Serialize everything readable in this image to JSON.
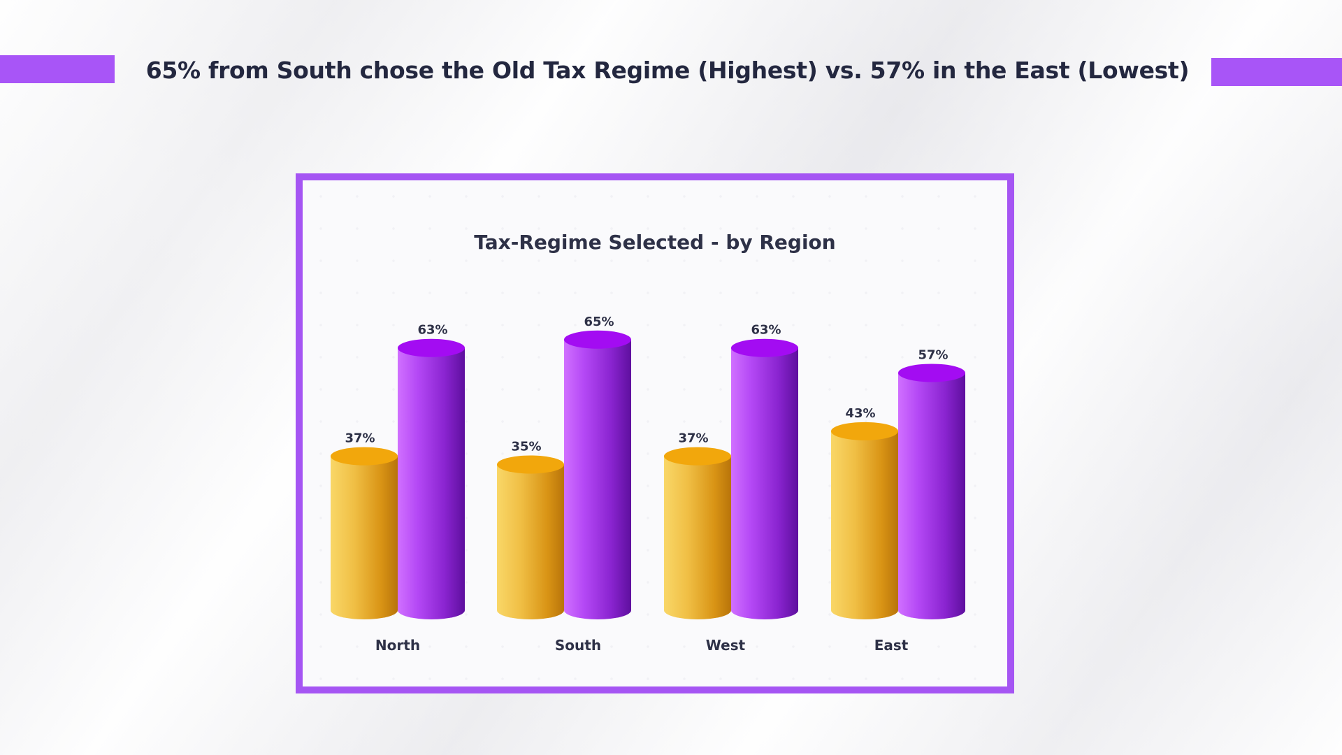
{
  "headline": "65% from South chose the Old Tax Regime (Highest) vs. 57% in the East (Lowest)",
  "colors": {
    "accent": "#a855f7",
    "frame": "#a555f3",
    "headline_text": "#23273f",
    "old_regime_top": "#a30cf2",
    "new_regime_top": "#f2a70c"
  },
  "chart_data": {
    "type": "bar",
    "title": "Tax-Regime Selected - by Region",
    "categories": [
      "North",
      "South",
      "West",
      "East"
    ],
    "series": [
      {
        "values": [
          37,
          35,
          37,
          43
        ],
        "labels": [
          "37%",
          "35%",
          "37%",
          "43%"
        ],
        "color": "#f4b41a"
      },
      {
        "values": [
          63,
          65,
          63,
          57
        ],
        "labels": [
          "63%",
          "65%",
          "63%",
          "57%"
        ],
        "color": "#a524f0"
      }
    ],
    "ylim": [
      0,
      70
    ],
    "grid": false,
    "legend": "none",
    "style": "3d-cylinder"
  }
}
